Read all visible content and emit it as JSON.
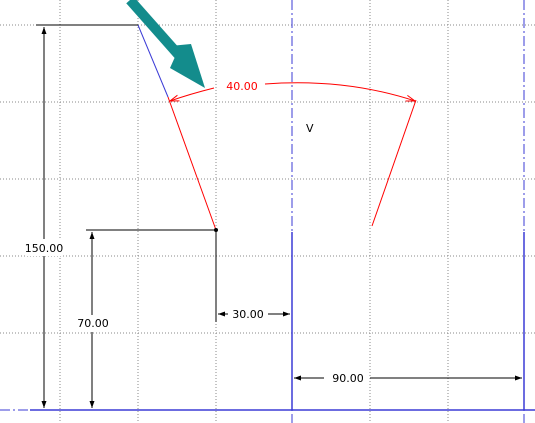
{
  "dimensions": {
    "height_150": "150.00",
    "height_70": "70.00",
    "offset_30": "30.00",
    "width_90": "90.00",
    "angle_40": "40.00"
  },
  "labels": {
    "vertex": "V"
  },
  "colors": {
    "grid": "#8a8a8a",
    "dimension": "#000000",
    "construction": "#3b3bd6",
    "constraint_red": "#ff0000",
    "arrow_teal": "#138c8c"
  },
  "icons": {
    "pointer": "arrow-pointer-icon"
  }
}
